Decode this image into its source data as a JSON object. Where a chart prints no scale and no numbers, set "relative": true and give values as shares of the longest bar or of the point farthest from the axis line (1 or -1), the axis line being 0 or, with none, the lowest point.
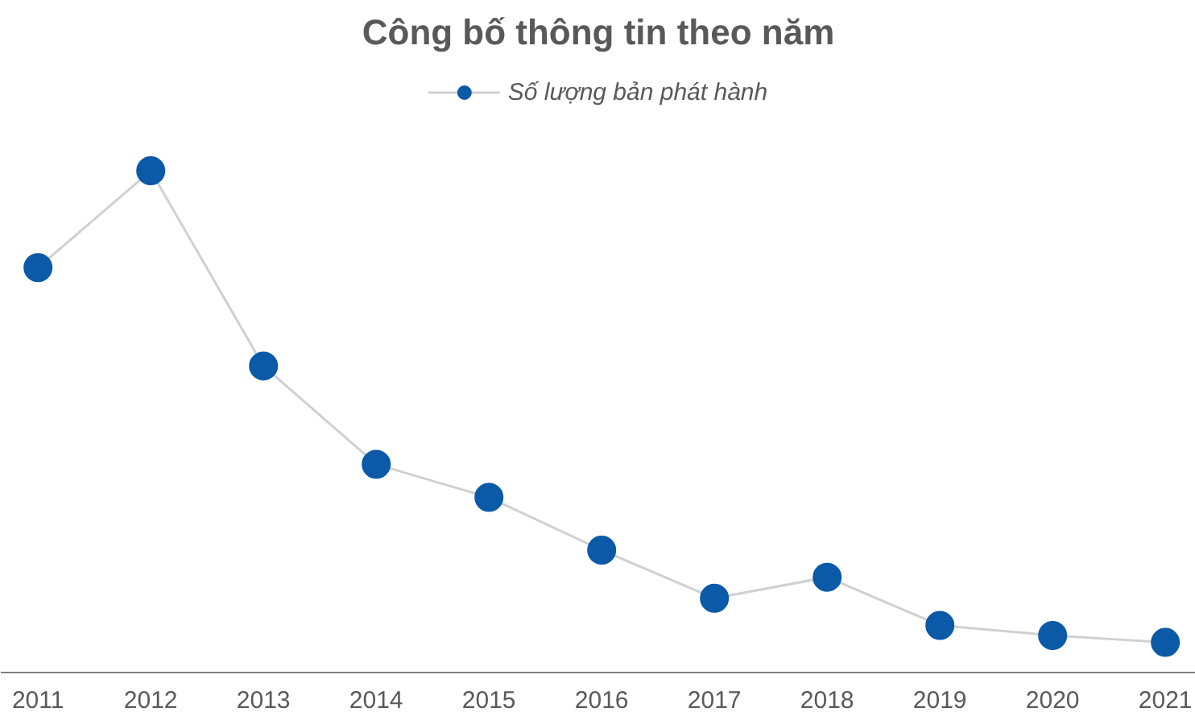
{
  "chart_data": {
    "type": "line",
    "title": "Công bố thông tin theo năm",
    "categories": [
      "2011",
      "2012",
      "2013",
      "2014",
      "2015",
      "2016",
      "2017",
      "2018",
      "2019",
      "2020",
      "2021"
    ],
    "relative": true,
    "series": [
      {
        "name": "Số lượng bản phát hành",
        "color": "#0a5aa8",
        "values": [
          0.807,
          1,
          0.611,
          0.415,
          0.349,
          0.244,
          0.148,
          0.19,
          0.094,
          0.074,
          0.06
        ]
      }
    ],
    "marker": "circle",
    "line_style": "solid",
    "grid": false,
    "legend": "top"
  }
}
